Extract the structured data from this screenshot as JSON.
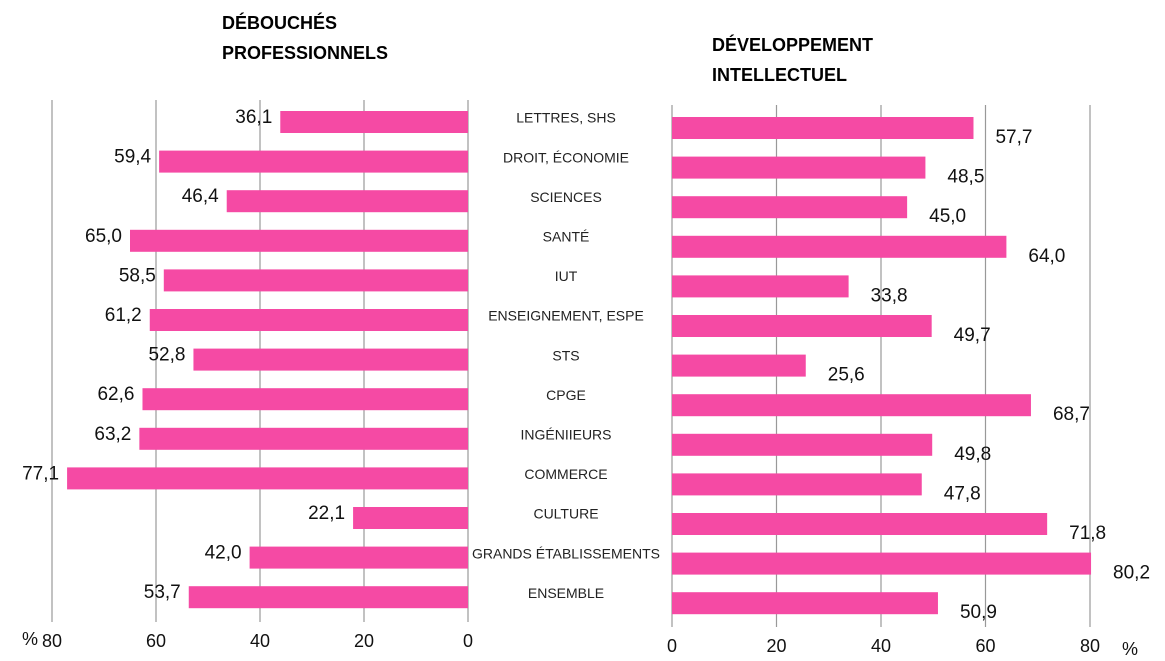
{
  "chart_data": [
    {
      "type": "barh",
      "title": "DÉBOUCHÉS PROFESSIONNELS",
      "categories": [
        "LETTRES, SHS",
        "DROIT, ÉCONOMIE",
        "SCIENCES",
        "SANTÉ",
        "IUT",
        "ENSEIGNEMENT, ESPE",
        "STS",
        "CPGE",
        "INGÉNIIEURS",
        "COMMERCE",
        "CULTURE",
        "GRANDS ÉTABLISSEMENTS",
        "ENSEMBLE"
      ],
      "values": [
        36.1,
        59.4,
        46.4,
        65.0,
        58.5,
        61.2,
        52.8,
        62.6,
        63.2,
        77.1,
        22.1,
        42.0,
        53.7
      ],
      "value_labels": [
        "36,1",
        "59,4",
        "46,4",
        "65,0",
        "58,5",
        "61,2",
        "52,8",
        "62,6",
        "63,2",
        "77,1",
        "22,1",
        "42,0",
        "53,7"
      ],
      "color": "#f54aa4",
      "xlim": [
        80,
        0
      ],
      "xticks": [
        0,
        20,
        40,
        60,
        80
      ],
      "xlabel": "%",
      "grid": true
    },
    {
      "type": "barh",
      "title": "DÉVELOPPEMENT INTELLECTUEL",
      "values": [
        57.7,
        48.5,
        45.0,
        64.0,
        33.8,
        49.7,
        25.6,
        68.7,
        49.8,
        47.8,
        71.8,
        80.2,
        50.9
      ],
      "value_labels": [
        "57,7",
        "48,5",
        "45,0",
        "64,0",
        "33,8",
        "49,7",
        "25,6",
        "68,7",
        "49,8",
        "47,8",
        "71,8",
        "80,2",
        "50,9"
      ],
      "color": "#f54aa4",
      "xlim": [
        0,
        80
      ],
      "xticks": [
        0,
        20,
        40,
        60,
        80
      ],
      "xlabel": "%",
      "grid": true
    }
  ]
}
